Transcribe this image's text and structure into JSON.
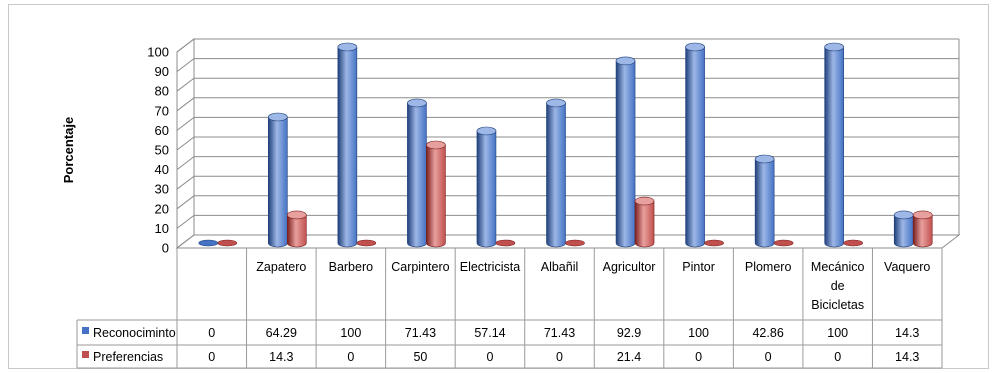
{
  "chart_data": {
    "type": "bar",
    "title": "",
    "xlabel": "",
    "ylabel": "Porcentaje",
    "ylim": [
      0,
      100
    ],
    "yticks": [
      0,
      10,
      20,
      30,
      40,
      50,
      60,
      70,
      80,
      90,
      100
    ],
    "grid": true,
    "legend": "data-table-left",
    "categories": [
      [
        ""
      ],
      [
        "Zapatero"
      ],
      [
        "Barbero"
      ],
      [
        "Carpintero"
      ],
      [
        "Electricista"
      ],
      [
        "Albañil"
      ],
      [
        "Agricultor"
      ],
      [
        "Pintor"
      ],
      [
        "Plomero"
      ],
      [
        "Mecánico",
        "de",
        "Bicicletas"
      ],
      [
        "Vaquero"
      ]
    ],
    "series": [
      {
        "name": "Reconociminto",
        "color": "#4472c4",
        "shade": "#1f3f7a",
        "light": "#9db7e6",
        "values": [
          0,
          64.29,
          100,
          71.43,
          57.14,
          71.43,
          92.9,
          100,
          42.86,
          100,
          14.3
        ],
        "labels": [
          "0",
          "64.29",
          "100",
          "71.43",
          "57.14",
          "71.43",
          "92.9",
          "100",
          "42.86",
          "100",
          "14.3"
        ]
      },
      {
        "name": "Preferencias",
        "color": "#c0504d",
        "shade": "#7a1f1d",
        "light": "#e8a09e",
        "values": [
          0,
          14.3,
          0,
          50,
          0,
          0,
          21.4,
          0,
          0,
          0,
          14.3
        ],
        "labels": [
          "0",
          "14.3",
          "0",
          "50",
          "0",
          "0",
          "21.4",
          "0",
          "0",
          "0",
          "14.3"
        ]
      }
    ]
  }
}
